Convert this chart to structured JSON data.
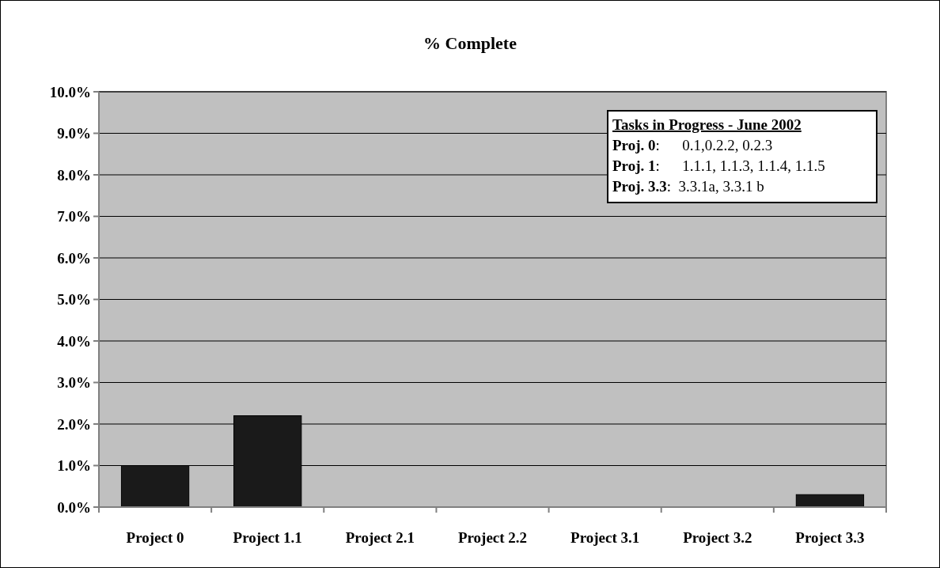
{
  "chart_data": {
    "type": "bar",
    "title": "% Complete",
    "categories": [
      "Project 0",
      "Project 1.1",
      "Project 2.1",
      "Project 2.2",
      "Project 3.1",
      "Project 3.2",
      "Project 3.3"
    ],
    "values": [
      1.0,
      2.2,
      0,
      0,
      0,
      0,
      0.3
    ],
    "color": "#1a1a1a",
    "ylim": [
      0,
      10
    ],
    "yticks": [
      {
        "value": 0,
        "label": "0.0%"
      },
      {
        "value": 1,
        "label": "1.0%"
      },
      {
        "value": 2,
        "label": "2.0%"
      },
      {
        "value": 3,
        "label": "3.0%"
      },
      {
        "value": 4,
        "label": "4.0%"
      },
      {
        "value": 5,
        "label": "5.0%"
      },
      {
        "value": 6,
        "label": "6.0%"
      },
      {
        "value": 7,
        "label": "7.0%"
      },
      {
        "value": 8,
        "label": "8.0%"
      },
      {
        "value": 9,
        "label": "9.0%"
      },
      {
        "value": 10,
        "label": "10.0%"
      }
    ],
    "grid": "y",
    "annotations": [
      "Tasks in Progress - June 2002",
      "Proj. 0:      0.1,0.2.2, 0.2.3",
      "Proj. 1:      1.1.1, 1.1.3, 1.1.4, 1.1.5",
      "Proj. 3.3:  3.3.1a, 3.3.1 b"
    ]
  }
}
